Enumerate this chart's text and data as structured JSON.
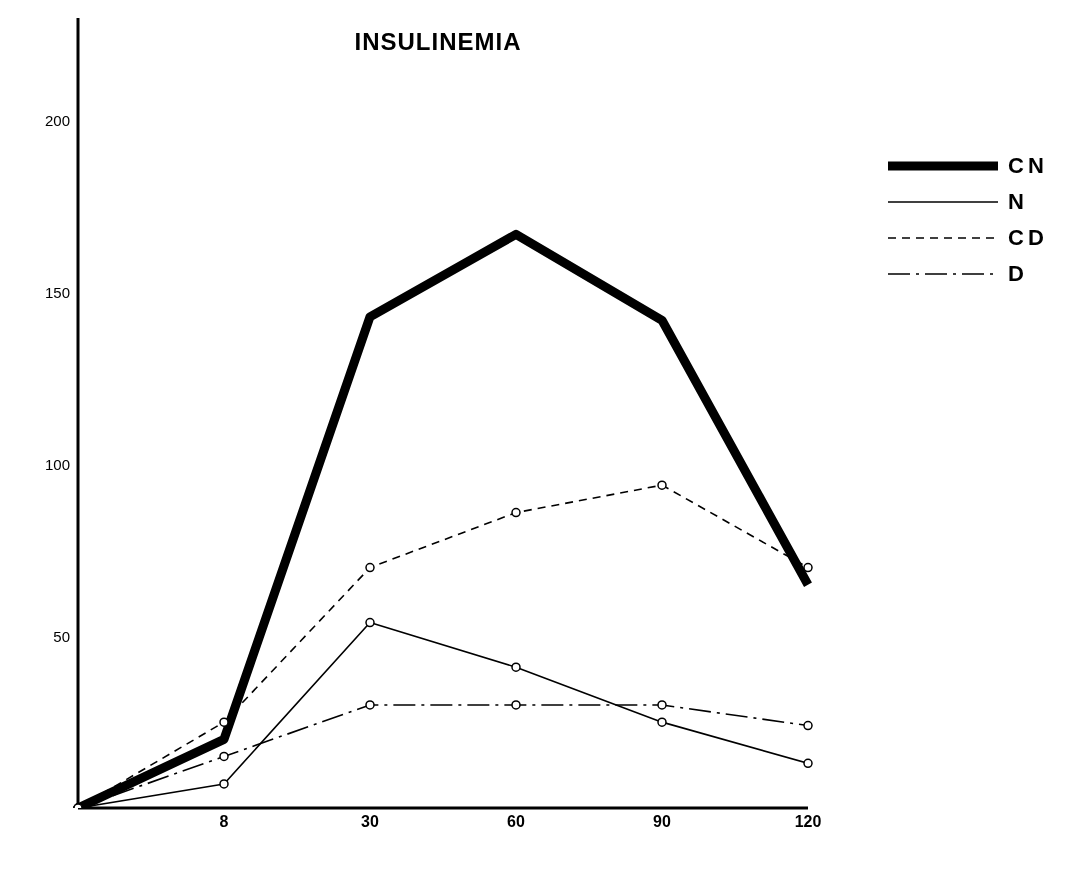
{
  "chart_data": {
    "type": "line",
    "title": "INSULINEMIA",
    "categories": [
      null,
      "8",
      "30",
      "60",
      "90",
      "120"
    ],
    "series": [
      {
        "name": "CN",
        "color": "#000000",
        "values": [
          0,
          20,
          143,
          167,
          142,
          65
        ],
        "marker": "none",
        "line_style": "solid"
      },
      {
        "name": "N",
        "color": "#000000",
        "values": [
          0,
          7,
          54,
          41,
          25,
          13
        ],
        "marker": "circle",
        "line_style": "solid"
      },
      {
        "name": "CD",
        "color": "#000000",
        "values": [
          0,
          25,
          70,
          86,
          94,
          70
        ],
        "marker": "circle",
        "line_style": "dashed"
      },
      {
        "name": "D",
        "color": "#000000",
        "values": [
          0,
          15,
          30,
          30,
          30,
          24
        ],
        "marker": "circle",
        "line_style": "dashdot"
      }
    ],
    "ylim": [
      0,
      230
    ],
    "yticks": [
      50,
      100,
      150,
      200
    ],
    "grid": false,
    "legend": "top right"
  }
}
